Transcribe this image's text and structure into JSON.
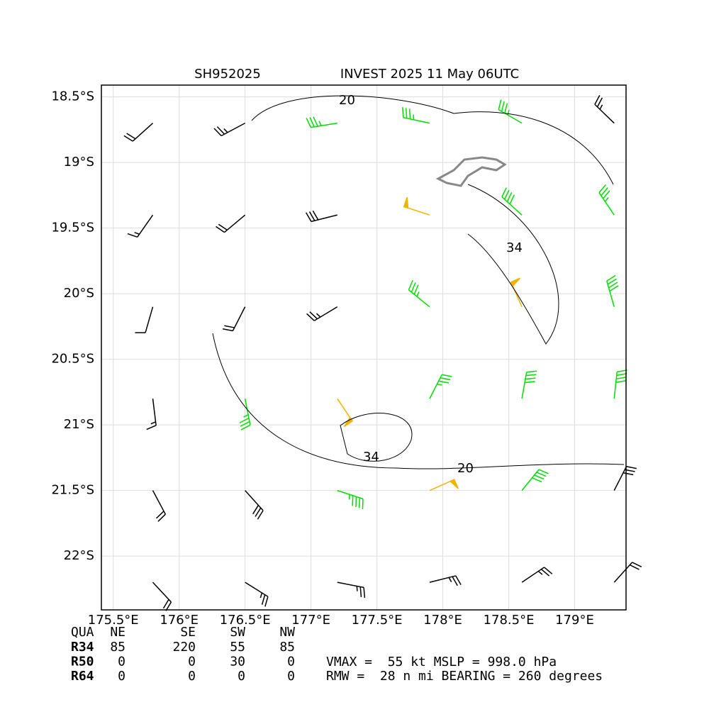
{
  "header": {
    "left": "SH952025",
    "right": "INVEST 2025 11 May 06UTC"
  },
  "map": {
    "xlim": [
      175.41,
      179.39
    ],
    "ylim": [
      -22.41,
      -18.41
    ],
    "xticks": [
      {
        "value": 175.5,
        "label": "175.5°E"
      },
      {
        "value": 176,
        "label": "176°E"
      },
      {
        "value": 176.5,
        "label": "176.5°E"
      },
      {
        "value": 177,
        "label": "177°E"
      },
      {
        "value": 177.5,
        "label": "177.5°E"
      },
      {
        "value": 178,
        "label": "178°E"
      },
      {
        "value": 178.5,
        "label": "178.5°E"
      },
      {
        "value": 179,
        "label": "179°E"
      }
    ],
    "yticks": [
      {
        "value": -18.5,
        "label": "18.5°S"
      },
      {
        "value": -19,
        "label": "19°S"
      },
      {
        "value": -19.5,
        "label": "19.5°S"
      },
      {
        "value": -20,
        "label": "20°S"
      },
      {
        "value": -20.5,
        "label": "20.5°S"
      },
      {
        "value": -21,
        "label": "21°S"
      },
      {
        "value": -21.5,
        "label": "21.5°S"
      },
      {
        "value": -22,
        "label": "22°S"
      }
    ],
    "grid": true,
    "wind": {
      "lons": [
        175.8,
        176.5,
        177.2,
        177.9,
        178.6,
        179.3
      ],
      "lats": [
        -18.7,
        -19.4,
        -20.1,
        -20.8,
        -21.5,
        -22.2
      ],
      "speed": [
        [
          20,
          25,
          35,
          35,
          35,
          25
        ],
        [
          15,
          20,
          30,
          50,
          40,
          35
        ],
        [
          10,
          20,
          25,
          35,
          50,
          40
        ],
        [
          15,
          35,
          50,
          35,
          40,
          40
        ],
        [
          20,
          30,
          45,
          50,
          40,
          30
        ],
        [
          20,
          25,
          25,
          25,
          25,
          20
        ]
      ],
      "direction": [
        [
          228,
          242,
          261,
          282,
          300,
          314
        ],
        [
          215,
          230,
          256,
          288,
          312,
          326
        ],
        [
          196,
          207,
          239,
          309,
          336,
          344
        ],
        [
          173,
          169,
          146,
          27,
          10,
          6
        ],
        [
          152,
          138,
          108,
          66,
          39,
          27
        ],
        [
          137,
          122,
          101,
          76,
          56,
          42
        ]
      ],
      "thresholds": [
        34,
        50
      ],
      "colors": [
        "#000000",
        "#00dd00",
        "#f0b400"
      ]
    },
    "contour_labels": [
      "20",
      "34",
      "34",
      "20"
    ]
  },
  "table": {
    "columns": [
      "QUA",
      "NE",
      "SE",
      "SW",
      "NW"
    ],
    "rows": [
      [
        "R34",
        85,
        220,
        55,
        85
      ],
      [
        "R50",
        0,
        0,
        30,
        0
      ],
      [
        "R64",
        0,
        0,
        0,
        0
      ]
    ]
  },
  "stats": [
    "VMAX =  55 kt MSLP = 998.0 hPa",
    "RMW =  28 n mi BEARING = 260 degrees"
  ]
}
